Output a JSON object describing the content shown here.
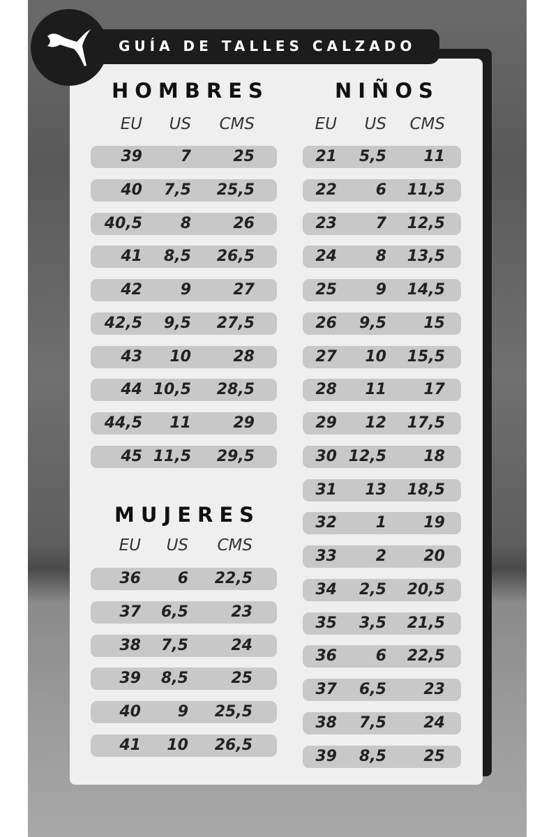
{
  "title": "GUÍA DE TALLES CALZADO",
  "logo_icon": "puma-cat-logo",
  "columns": [
    "EU",
    "US",
    "CMS"
  ],
  "sections": {
    "hombres": {
      "title": "HOMBRES",
      "rows": [
        [
          "39",
          "7",
          "25"
        ],
        [
          "40",
          "7,5",
          "25,5"
        ],
        [
          "40,5",
          "8",
          "26"
        ],
        [
          "41",
          "8,5",
          "26,5"
        ],
        [
          "42",
          "9",
          "27"
        ],
        [
          "42,5",
          "9,5",
          "27,5"
        ],
        [
          "43",
          "10",
          "28"
        ],
        [
          "44",
          "10,5",
          "28,5"
        ],
        [
          "44,5",
          "11",
          "29"
        ],
        [
          "45",
          "11,5",
          "29,5"
        ]
      ]
    },
    "mujeres": {
      "title": "MUJERES",
      "rows": [
        [
          "36",
          "6",
          "22,5"
        ],
        [
          "37",
          "6,5",
          "23"
        ],
        [
          "38",
          "7,5",
          "24"
        ],
        [
          "39",
          "8,5",
          "25"
        ],
        [
          "40",
          "9",
          "25,5"
        ],
        [
          "41",
          "10",
          "26,5"
        ]
      ]
    },
    "ninos": {
      "title": "NIÑOS",
      "rows": [
        [
          "21",
          "5,5",
          "11"
        ],
        [
          "22",
          "6",
          "11,5"
        ],
        [
          "23",
          "7",
          "12,5"
        ],
        [
          "24",
          "8",
          "13,5"
        ],
        [
          "25",
          "9",
          "14,5"
        ],
        [
          "26",
          "9,5",
          "15"
        ],
        [
          "27",
          "10",
          "15,5"
        ],
        [
          "28",
          "11",
          "17"
        ],
        [
          "29",
          "12",
          "17,5"
        ],
        [
          "30",
          "12,5",
          "18"
        ],
        [
          "31",
          "13",
          "18,5"
        ],
        [
          "32",
          "1",
          "19"
        ],
        [
          "33",
          "2",
          "20"
        ],
        [
          "34",
          "2,5",
          "20,5"
        ],
        [
          "35",
          "3,5",
          "21,5"
        ],
        [
          "36",
          "6",
          "22,5"
        ],
        [
          "37",
          "6,5",
          "23"
        ],
        [
          "38",
          "7,5",
          "24"
        ],
        [
          "39",
          "8,5",
          "25"
        ]
      ]
    }
  }
}
